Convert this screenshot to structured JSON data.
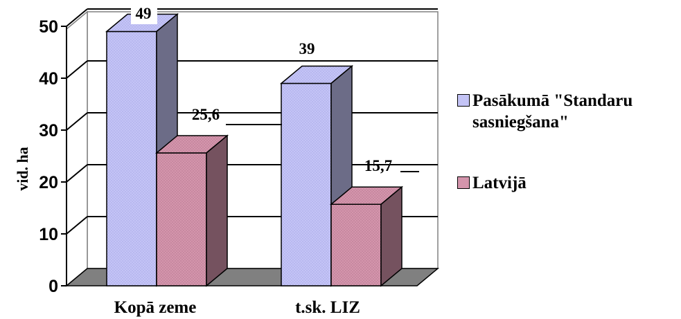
{
  "chart_data": {
    "type": "bar",
    "categories": [
      "Kopā zeme",
      "t.sk. LIZ"
    ],
    "series": [
      {
        "name": "Pasākumā \"Standaru sasniegšana\"",
        "values": [
          49,
          39
        ],
        "labels": [
          "49",
          "39"
        ]
      },
      {
        "name": "Latvijā",
        "values": [
          25.6,
          15.7
        ],
        "labels": [
          "25,6",
          "15,7"
        ]
      }
    ],
    "colors": [
      "#c4c4f6",
      "#d495ac"
    ],
    "ylabel": "vid. ha",
    "ylim": [
      0,
      50
    ],
    "yticks": [
      "0",
      "10",
      "20",
      "30",
      "40",
      "50"
    ],
    "grid": true,
    "three_d": true,
    "legend_position": "right"
  }
}
